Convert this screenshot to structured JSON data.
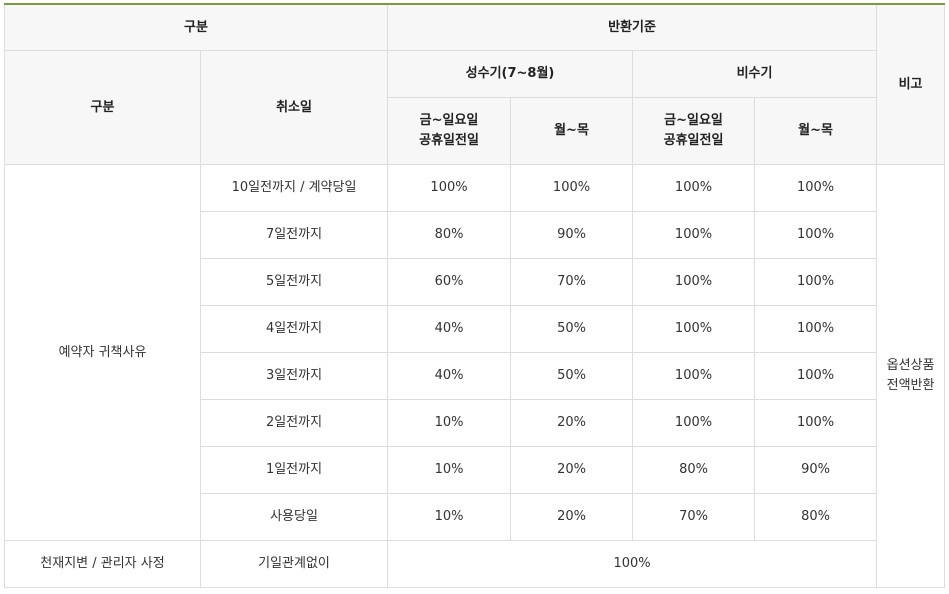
{
  "header": {
    "category": "구분",
    "refund_standard": "반환기준",
    "remarks": "비고",
    "category_sub": "구분",
    "cancel_date": "취소일",
    "peak_season": "성수기(7~8월)",
    "off_season": "비수기",
    "fri_sun_line1": "금~일요일",
    "fri_sun_line2": "공휴일전일",
    "mon_thu": "월~목",
    "off_fri_sun_line1": "금~일요일",
    "off_fri_sun_line2": "공휴일전일",
    "off_mon_thu": "월~목"
  },
  "group_customer": "예약자 귀책사유",
  "remarks_value_line1": "옵션상품",
  "remarks_value_line2": "전액반환",
  "rows": [
    {
      "day": "10일전까지 / 계약당일",
      "peak_weekend": "100%",
      "peak_weekday": "100%",
      "off_weekend": "100%",
      "off_weekday": "100%"
    },
    {
      "day": "7일전까지",
      "peak_weekend": "80%",
      "peak_weekday": "90%",
      "off_weekend": "100%",
      "off_weekday": "100%"
    },
    {
      "day": "5일전까지",
      "peak_weekend": "60%",
      "peak_weekday": "70%",
      "off_weekend": "100%",
      "off_weekday": "100%"
    },
    {
      "day": "4일전까지",
      "peak_weekend": "40%",
      "peak_weekday": "50%",
      "off_weekend": "100%",
      "off_weekday": "100%"
    },
    {
      "day": "3일전까지",
      "peak_weekend": "40%",
      "peak_weekday": "50%",
      "off_weekend": "100%",
      "off_weekday": "100%"
    },
    {
      "day": "2일전까지",
      "peak_weekend": "10%",
      "peak_weekday": "20%",
      "off_weekend": "100%",
      "off_weekday": "100%"
    },
    {
      "day": "1일전까지",
      "peak_weekend": "10%",
      "peak_weekday": "20%",
      "off_weekend": "80%",
      "off_weekday": "90%"
    },
    {
      "day": "사용당일",
      "peak_weekend": "10%",
      "peak_weekday": "20%",
      "off_weekend": "70%",
      "off_weekday": "80%"
    }
  ],
  "disaster_row": {
    "category": "천재지변 / 관리자 사정",
    "day": "기일관계없이",
    "value": "100%"
  }
}
